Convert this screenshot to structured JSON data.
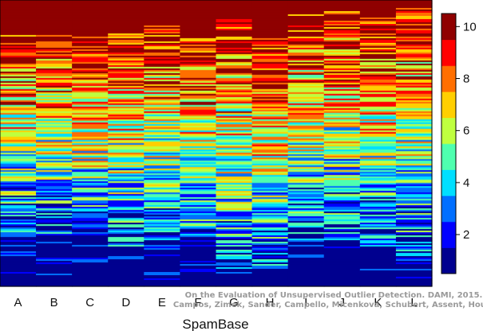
{
  "chart_data": {
    "type": "heatmap",
    "title": "",
    "xlabel": "SpamBase",
    "ylabel": "",
    "categories": [
      "A",
      "B",
      "C",
      "D",
      "E",
      "F",
      "G",
      "H",
      "I",
      "J",
      "K",
      "L"
    ],
    "color_scale": {
      "type": "jet",
      "min": 0.5,
      "max": 10.5,
      "ticks": [
        2,
        4,
        6,
        8,
        10
      ],
      "colors": [
        "#00008f",
        "#0000ff",
        "#006fff",
        "#00dfff",
        "#4fffaf",
        "#bfff3f",
        "#ffcf00",
        "#ff6f00",
        "#ff0000",
        "#8f0000"
      ]
    },
    "column_profile": {
      "A": {
        "top": 0.11,
        "bottom": 0.82
      },
      "B": {
        "top": 0.11,
        "bottom": 0.82
      },
      "C": {
        "top": 0.12,
        "bottom": 0.84
      },
      "D": {
        "top": 0.1,
        "bottom": 0.86
      },
      "E": {
        "top": 0.07,
        "bottom": 0.84
      },
      "F": {
        "top": 0.13,
        "bottom": 0.84
      },
      "G": {
        "top": 0.06,
        "bottom": 0.94
      },
      "H": {
        "top": 0.11,
        "bottom": 0.94
      },
      "I": {
        "top": 0.05,
        "bottom": 0.84
      },
      "J": {
        "top": 0.04,
        "bottom": 0.84
      },
      "K": {
        "top": 0.06,
        "bottom": 0.86
      },
      "L": {
        "top": 0.03,
        "bottom": 0.9
      }
    },
    "legend": "right",
    "grid": false
  },
  "watermark": {
    "line1": "On the Evaluation of Unsupervised Outlier Detection. DAMI, 2015.",
    "line2": "Campos, Zimek, Sander, Campello, Micenková, Schubert, Assent, Houle"
  }
}
